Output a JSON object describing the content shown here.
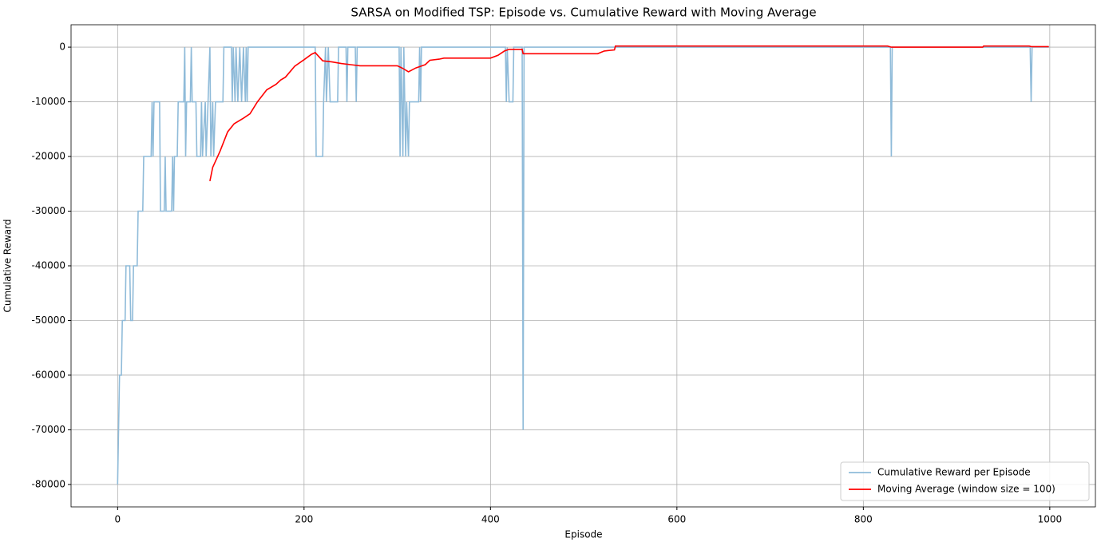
{
  "chart_data": {
    "type": "line",
    "title": "SARSA on Modified TSP: Episode vs. Cumulative Reward with Moving Average",
    "xlabel": "Episode",
    "ylabel": "Cumulative Reward",
    "xlim": [
      -49.95,
      1048.95
    ],
    "xticks": [
      0,
      200,
      400,
      600,
      800,
      1000
    ],
    "ylim": [
      -84100,
      4100
    ],
    "yticks": [
      -80000,
      -70000,
      -60000,
      -50000,
      -40000,
      -30000,
      -20000,
      -10000,
      0
    ],
    "grid": true,
    "legend": "lower right",
    "series": [
      {
        "name": "Cumulative Reward per Episode",
        "color": "#8fbbd9",
        "x": [
          0,
          1,
          2,
          4,
          5,
          8,
          9,
          13,
          14,
          16,
          17,
          21,
          22,
          27,
          28,
          36,
          37,
          38,
          39,
          45,
          46,
          50,
          51,
          52,
          58,
          59,
          60,
          61,
          64,
          65,
          71,
          72,
          73,
          74,
          78,
          79,
          80,
          84,
          85,
          89,
          90,
          91,
          94,
          95,
          97,
          99,
          100,
          102,
          103,
          105,
          113,
          114,
          122,
          123,
          124,
          126,
          127,
          129,
          131,
          133,
          135,
          137,
          138,
          139,
          140,
          212,
          213,
          220,
          221,
          223,
          224,
          226,
          228,
          236,
          237,
          245,
          246,
          247,
          255,
          256,
          257,
          302,
          303,
          304,
          305,
          306,
          307,
          309,
          310,
          312,
          313,
          323,
          324,
          325,
          326,
          416,
          417,
          418,
          420,
          424,
          425,
          434,
          435,
          436,
          829,
          830,
          831,
          979,
          980,
          981,
          999
        ],
        "values": [
          -80000,
          -70000,
          -60000,
          -60000,
          -50000,
          -50000,
          -40000,
          -40000,
          -50000,
          -50000,
          -40000,
          -40000,
          -30000,
          -30000,
          -20000,
          -20000,
          -10000,
          -20000,
          -10000,
          -10000,
          -30000,
          -30000,
          -20000,
          -30000,
          -30000,
          -20000,
          -30000,
          -20000,
          -20000,
          -10000,
          -10000,
          0,
          -20000,
          -10000,
          -10000,
          0,
          -10000,
          -10000,
          -20000,
          -20000,
          -10000,
          -20000,
          -10000,
          -20000,
          -10000,
          0,
          -20000,
          -10000,
          -20000,
          -10000,
          -10000,
          0,
          0,
          -10000,
          0,
          -10000,
          0,
          -10000,
          0,
          -10000,
          0,
          -10000,
          0,
          -10000,
          0,
          0,
          -20000,
          -20000,
          -10000,
          0,
          -10000,
          0,
          -10000,
          -10000,
          0,
          0,
          -10000,
          0,
          0,
          -10000,
          0,
          0,
          -20000,
          0,
          -10000,
          -20000,
          0,
          -20000,
          -10000,
          -20000,
          -10000,
          -10000,
          0,
          -10000,
          0,
          0,
          -10000,
          0,
          -10000,
          -10000,
          0,
          0,
          -70000,
          0,
          0,
          -20000,
          0,
          0,
          -10000,
          0,
          0
        ]
      },
      {
        "name": "Moving Average (window size = 100)",
        "color": "#ff0000",
        "x": [
          99,
          102,
          110,
          118,
          125,
          135,
          142,
          150,
          160,
          170,
          175,
          180,
          190,
          200,
          208,
          212,
          220,
          230,
          240,
          250,
          260,
          300,
          305,
          312,
          320,
          330,
          335,
          345,
          350,
          400,
          408,
          415,
          420,
          434,
          435,
          515,
          522,
          533,
          534,
          826,
          830,
          928,
          929,
          978,
          980,
          999
        ],
        "values": [
          -24500,
          -22000,
          -19000,
          -15500,
          -14000,
          -13000,
          -12200,
          -10000,
          -7800,
          -6800,
          -6000,
          -5500,
          -3500,
          -2300,
          -1300,
          -1000,
          -2500,
          -2700,
          -3000,
          -3200,
          -3400,
          -3400,
          -3800,
          -4500,
          -3800,
          -3200,
          -2400,
          -2200,
          -2000,
          -2000,
          -1500,
          -700,
          -400,
          -400,
          -1200,
          -1200,
          -700,
          -500,
          200,
          200,
          0,
          0,
          200,
          200,
          100,
          100
        ]
      }
    ]
  }
}
